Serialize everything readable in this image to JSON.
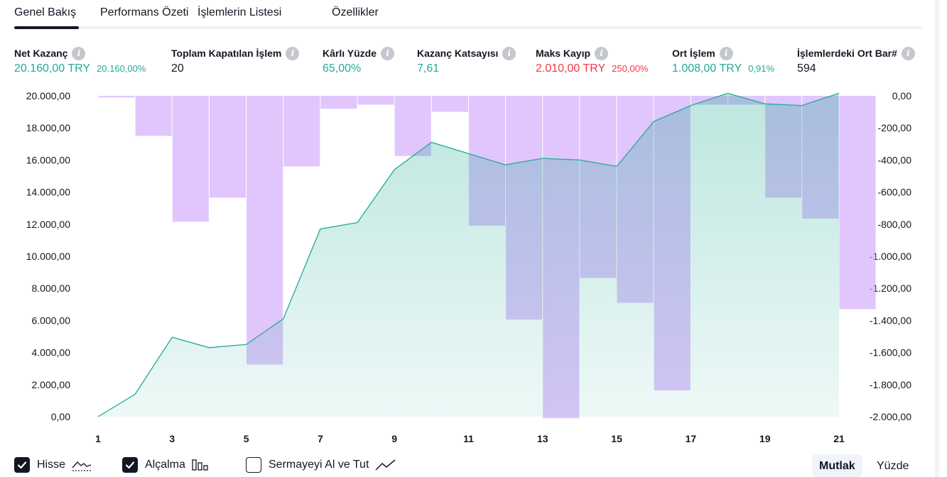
{
  "tabs": [
    {
      "label": "Genel Bakış",
      "active": true
    },
    {
      "label": "Performans Özeti",
      "active": false
    },
    {
      "label": "İşlemlerin Listesi",
      "active": false
    },
    {
      "label": "Özellikler",
      "active": false
    }
  ],
  "stats": {
    "net_profit": {
      "label": "Net Kazanç",
      "value": "20.160,00 TRY",
      "sub": "20.160,00%"
    },
    "total_closed": {
      "label": "Toplam Kapatılan İşlem",
      "value": "20"
    },
    "percent_profitable": {
      "label": "Kârlı Yüzde",
      "value": "65,00%"
    },
    "profit_factor": {
      "label": "Kazanç Katsayısı",
      "value": "7,61"
    },
    "max_drawdown": {
      "label": "Maks Kayıp",
      "value": "2.010,00 TRY",
      "sub": "250,00%"
    },
    "avg_trade": {
      "label": "Ort İşlem",
      "value": "1.008,00 TRY",
      "sub": "0,91%"
    },
    "avg_bars": {
      "label": "İşlemlerdeki Ort Bar#",
      "value": "594"
    }
  },
  "chart_data": {
    "type": "area",
    "x": [
      1,
      2,
      3,
      4,
      5,
      6,
      7,
      8,
      9,
      10,
      11,
      12,
      13,
      14,
      15,
      16,
      17,
      18,
      19,
      20,
      21
    ],
    "x_tick_labels": [
      "1",
      "3",
      "5",
      "7",
      "9",
      "11",
      "13",
      "15",
      "17",
      "19",
      "21"
    ],
    "series": [
      {
        "name": "Hisse",
        "axis": "left",
        "type": "area",
        "values": [
          0,
          1400,
          4950,
          4300,
          4500,
          6100,
          11700,
          12100,
          15400,
          17100,
          16400,
          15700,
          16100,
          16000,
          15600,
          18400,
          19400,
          20160,
          19500,
          19400,
          20160
        ]
      },
      {
        "name": "Alçalma",
        "axis": "right",
        "type": "bar",
        "values": [
          -10,
          -250,
          -785,
          -635,
          -1675,
          -440,
          -80,
          -55,
          -375,
          -100,
          -810,
          -1395,
          -2010,
          -1135,
          -1290,
          -1835,
          -55,
          -55,
          -635,
          -765,
          -1330
        ]
      }
    ],
    "left_axis": {
      "ylim": [
        0,
        20000
      ],
      "ticks": [
        "20.000,00",
        "18.000,00",
        "16.000,00",
        "14.000,00",
        "12.000,00",
        "10.000,00",
        "8.000,00",
        "6.000,00",
        "4.000,00",
        "2.000,00",
        "0,00"
      ]
    },
    "right_axis": {
      "ylim": [
        -2000,
        0
      ],
      "ticks": [
        "0,00",
        "-200,00",
        "-400,00",
        "-600,00",
        "-800,00",
        "-1.000,00",
        "-1.200,00",
        "-1.400,00",
        "-1.600,00",
        "-1.800,00",
        "-2.000,00"
      ]
    },
    "colors": {
      "equity_line": "#22ab94",
      "equity_fill": "#22ab94",
      "drawdown_bar": "#cfa3fb"
    }
  },
  "legend": {
    "equity": {
      "label": "Hisse",
      "checked": true
    },
    "drawdown": {
      "label": "Alçalma",
      "checked": true
    },
    "buy_hold": {
      "label": "Sermayeyi Al ve Tut",
      "checked": false
    }
  },
  "toggle": {
    "absolute": "Mutlak",
    "percent": "Yüzde"
  }
}
